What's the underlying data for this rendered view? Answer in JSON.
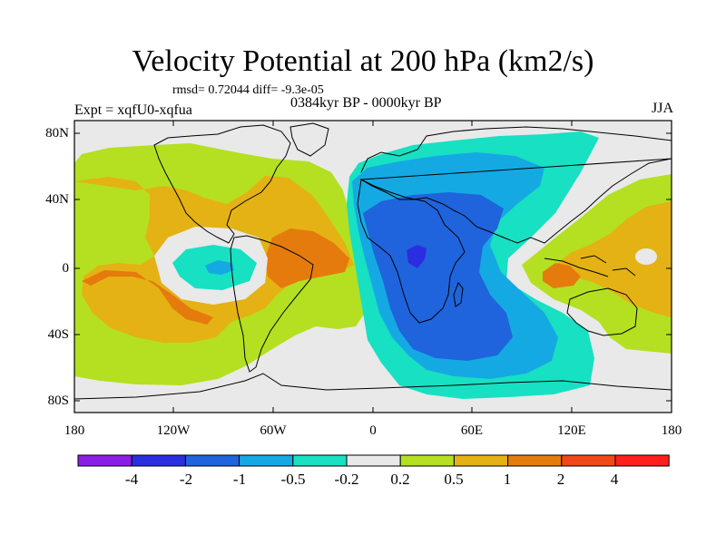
{
  "title": "Velocity Potential at 200 hPa (km2/s)",
  "stats": "rmsd= 0.72044 diff= -9.3e-05",
  "experiment": "Expt = xqfU0-xqfua",
  "period": "0384kyr BP - 0000kyr BP",
  "season": "JJA",
  "y_axis_labels": [
    "80N",
    "40N",
    "0",
    "40S",
    "80S"
  ],
  "x_axis_labels": [
    "180",
    "120W",
    "60W",
    "0",
    "60E",
    "120E",
    "180"
  ],
  "colorbar": {
    "labels": [
      "-4",
      "-2",
      "-1",
      "-0.5",
      "-0.2",
      "0.2",
      "0.5",
      "1",
      "2",
      "4"
    ],
    "colors": [
      "#8a1fe6",
      "#2a2ee0",
      "#1f64dc",
      "#15a9e3",
      "#18e0c2",
      "#e9e9e9",
      "#b4e021",
      "#e4b214",
      "#e57b0c",
      "#f04818",
      "#ff1f1f"
    ]
  },
  "palette": {
    "ocean": "#e9e9e9",
    "coast": "#000000"
  }
}
